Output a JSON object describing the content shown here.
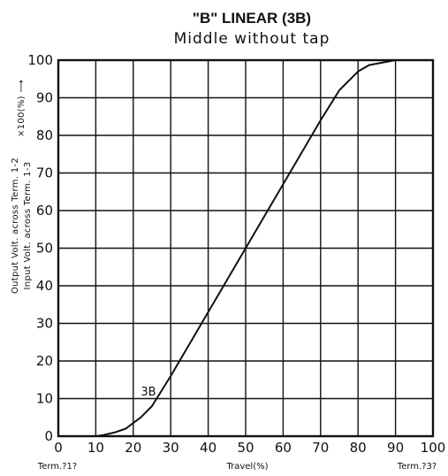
{
  "chart_data": {
    "type": "line",
    "title": "\"B\" LINEAR (3B)",
    "subtitle": "Middle without tap",
    "xlabel": "Travel(%)",
    "x_left_label": "Term.?1?",
    "x_right_label": "Term.?3?",
    "ylabel_top": "Output Volt. across  Term. 1-2",
    "ylabel_bottom": "Input  Volt. across  Term. 1-3",
    "ylabel_suffix": "×100(%) ⟶",
    "xlim": [
      0,
      100
    ],
    "ylim": [
      0,
      100
    ],
    "x_ticks": [
      "0",
      "10",
      "20",
      "30",
      "40",
      "50",
      "60",
      "70",
      "80",
      "90",
      "100"
    ],
    "y_ticks": [
      "0",
      "10",
      "20",
      "30",
      "40",
      "50",
      "60",
      "70",
      "80",
      "90",
      "100"
    ],
    "grid": true,
    "series": [
      {
        "name": "3B",
        "x": [
          10,
          12,
          15,
          18,
          20,
          22,
          25,
          30,
          40,
          50,
          60,
          70,
          75,
          78,
          80,
          83,
          90
        ],
        "y": [
          0,
          0.3,
          1,
          2,
          3.5,
          5,
          8,
          16,
          33,
          50,
          67,
          84,
          92,
          95,
          97,
          98.7,
          100
        ]
      }
    ],
    "series_label_position": {
      "x": 25,
      "y": 12
    }
  }
}
